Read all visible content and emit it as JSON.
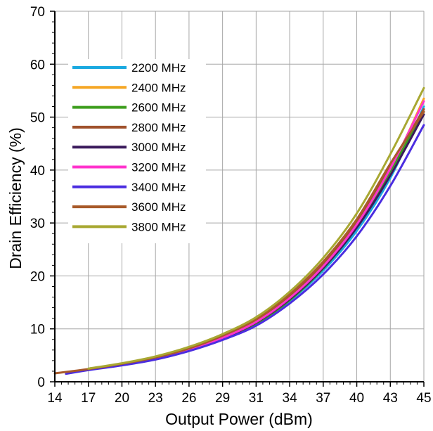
{
  "chart_data": {
    "type": "line",
    "xlabel": "Output Power (dBm)",
    "ylabel": "Drain Efficiency (%)",
    "x_ticks": [
      "14",
      "17",
      "20",
      "23",
      "26",
      "29",
      "31",
      "34",
      "37",
      "40",
      "43",
      "45"
    ],
    "y_ticks": [
      "0",
      "10",
      "20",
      "30",
      "40",
      "50",
      "60",
      "70"
    ],
    "xlim": [
      14,
      45
    ],
    "ylim": [
      0,
      70
    ],
    "grid": true,
    "legend_position": "top-left",
    "series": [
      {
        "name": "2200 MHz",
        "color": "#1aa9e0",
        "points": [
          [
            17,
            2.3
          ],
          [
            20,
            3.3
          ],
          [
            23,
            4.4
          ],
          [
            26,
            6.0
          ],
          [
            29,
            8.2
          ],
          [
            31,
            11.0
          ],
          [
            34,
            15.3
          ],
          [
            37,
            21.0
          ],
          [
            40,
            28.5
          ],
          [
            43,
            38.5
          ],
          [
            45,
            52.0
          ]
        ]
      },
      {
        "name": "2400 MHz",
        "color": "#f5a623",
        "points": [
          [
            17,
            2.3
          ],
          [
            20,
            3.3
          ],
          [
            23,
            4.5
          ],
          [
            26,
            6.1
          ],
          [
            29,
            8.4
          ],
          [
            31,
            11.4
          ],
          [
            34,
            15.9
          ],
          [
            37,
            21.8
          ],
          [
            40,
            29.5
          ],
          [
            43,
            40.0
          ],
          [
            45,
            53.5
          ]
        ]
      },
      {
        "name": "2600 MHz",
        "color": "#3d9e1e",
        "points": [
          [
            17,
            2.3
          ],
          [
            20,
            3.2
          ],
          [
            23,
            4.3
          ],
          [
            26,
            5.9
          ],
          [
            29,
            8.1
          ],
          [
            31,
            11.0
          ],
          [
            34,
            15.4
          ],
          [
            37,
            21.4
          ],
          [
            40,
            29.2
          ],
          [
            43,
            39.8
          ],
          [
            45,
            51.0
          ]
        ]
      },
      {
        "name": "2800 MHz",
        "color": "#a0522d",
        "points": [
          [
            17,
            2.4
          ],
          [
            20,
            3.4
          ],
          [
            23,
            4.6
          ],
          [
            26,
            6.3
          ],
          [
            29,
            8.6
          ],
          [
            31,
            11.7
          ],
          [
            34,
            16.3
          ],
          [
            37,
            22.3
          ],
          [
            40,
            30.2
          ],
          [
            43,
            40.8
          ],
          [
            45,
            51.5
          ]
        ]
      },
      {
        "name": "3000 MHz",
        "color": "#3b1a5c",
        "points": [
          [
            17,
            2.3
          ],
          [
            20,
            3.2
          ],
          [
            23,
            4.4
          ],
          [
            26,
            6.0
          ],
          [
            29,
            8.2
          ],
          [
            31,
            11.2
          ],
          [
            34,
            15.6
          ],
          [
            37,
            21.5
          ],
          [
            40,
            29.1
          ],
          [
            43,
            39.0
          ],
          [
            45,
            50.5
          ]
        ]
      },
      {
        "name": "3200 MHz",
        "color": "#ff33cc",
        "points": [
          [
            17,
            2.3
          ],
          [
            20,
            3.3
          ],
          [
            23,
            4.5
          ],
          [
            26,
            6.1
          ],
          [
            29,
            8.3
          ],
          [
            31,
            11.3
          ],
          [
            34,
            15.8
          ],
          [
            37,
            21.8
          ],
          [
            40,
            29.7
          ],
          [
            43,
            40.3
          ],
          [
            45,
            53.0
          ]
        ]
      },
      {
        "name": "3400 MHz",
        "color": "#4b2de0",
        "points": [
          [
            15,
            1.5
          ],
          [
            17,
            2.2
          ],
          [
            20,
            3.1
          ],
          [
            23,
            4.2
          ],
          [
            26,
            5.8
          ],
          [
            29,
            7.9
          ],
          [
            31,
            10.6
          ],
          [
            34,
            14.8
          ],
          [
            37,
            20.3
          ],
          [
            40,
            27.5
          ],
          [
            43,
            37.0
          ],
          [
            45,
            48.5
          ]
        ]
      },
      {
        "name": "3600 MHz",
        "color": "#a85a2a",
        "points": [
          [
            14,
            1.6
          ],
          [
            17,
            2.4
          ],
          [
            20,
            3.4
          ],
          [
            23,
            4.6
          ],
          [
            26,
            6.3
          ],
          [
            29,
            8.7
          ],
          [
            31,
            11.8
          ],
          [
            34,
            16.5
          ],
          [
            37,
            22.7
          ],
          [
            40,
            30.7
          ],
          [
            43,
            41.2
          ],
          [
            45,
            51.0
          ]
        ]
      },
      {
        "name": "3800 MHz",
        "color": "#a8a832",
        "points": [
          [
            17,
            2.5
          ],
          [
            20,
            3.5
          ],
          [
            23,
            4.8
          ],
          [
            26,
            6.6
          ],
          [
            29,
            9.0
          ],
          [
            31,
            12.2
          ],
          [
            34,
            17.0
          ],
          [
            37,
            23.4
          ],
          [
            40,
            31.8
          ],
          [
            43,
            43.0
          ],
          [
            45,
            55.5
          ]
        ]
      }
    ]
  }
}
